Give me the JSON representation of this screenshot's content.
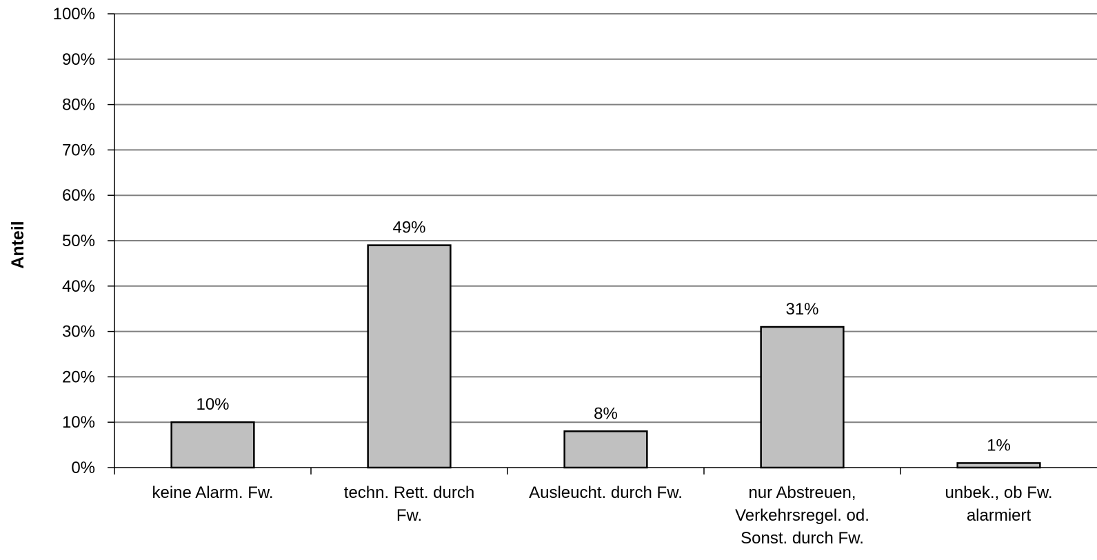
{
  "chart_data": {
    "type": "bar",
    "title": "",
    "xlabel": "",
    "ylabel": "Anteil",
    "ylim": [
      0,
      100
    ],
    "grid": true,
    "legend": "none",
    "y_ticks": [
      "0%",
      "10%",
      "20%",
      "30%",
      "40%",
      "50%",
      "60%",
      "70%",
      "80%",
      "90%",
      "100%"
    ],
    "categories": [
      [
        "keine Alarm. Fw."
      ],
      [
        "techn. Rett. durch",
        "Fw."
      ],
      [
        "Ausleucht. durch Fw."
      ],
      [
        "nur Abstreuen,",
        "Verkehrsregel. od.",
        "Sonst. durch Fw."
      ],
      [
        "unbek., ob Fw.",
        "alarmiert"
      ]
    ],
    "values": [
      10,
      49,
      8,
      31,
      1
    ],
    "data_labels": [
      "10%",
      "49%",
      "8%",
      "31%",
      "1%"
    ],
    "colors": {
      "bar_fill": "#c0c0c0",
      "bar_stroke": "#000000",
      "grid": "#808080",
      "axis": "#000000"
    }
  }
}
